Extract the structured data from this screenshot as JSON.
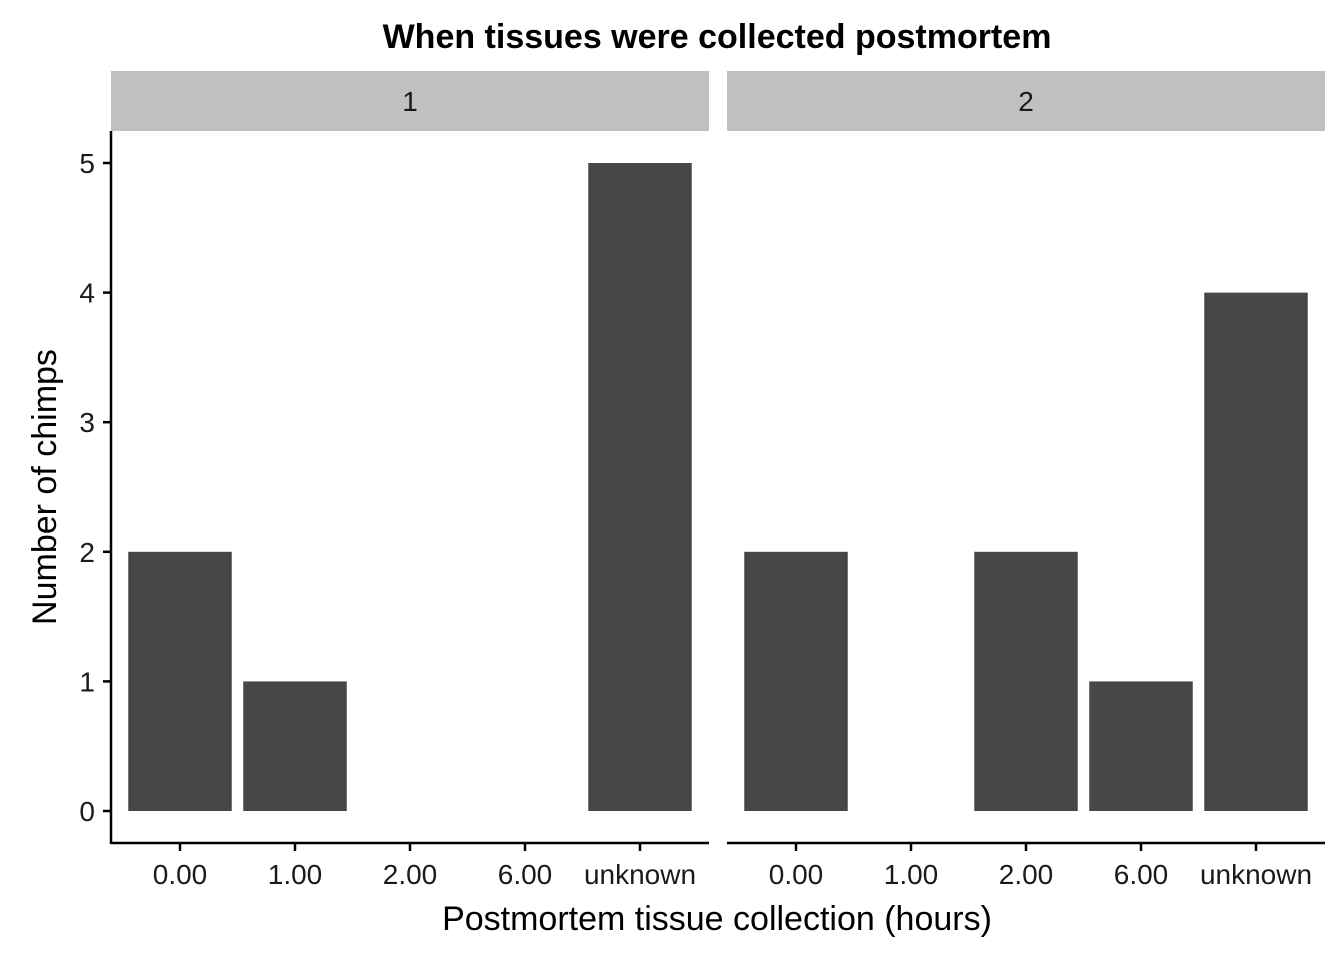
{
  "chart_data": {
    "type": "bar",
    "title": "When tissues were collected postmortem",
    "xlabel": "Postmortem tissue collection (hours)",
    "ylabel": "Number of chimps",
    "categories": [
      "0.00",
      "1.00",
      "2.00",
      "6.00",
      "unknown"
    ],
    "ylim": [
      0,
      5
    ],
    "yticks": [
      "0",
      "1",
      "2",
      "3",
      "4",
      "5"
    ],
    "grid": false,
    "bar_color": "#474747",
    "strip_color": "#c0c0c0",
    "facets": [
      {
        "label": "1",
        "values": [
          2,
          1,
          0,
          0,
          5
        ]
      },
      {
        "label": "2",
        "values": [
          2,
          0,
          2,
          1,
          4
        ]
      }
    ]
  }
}
